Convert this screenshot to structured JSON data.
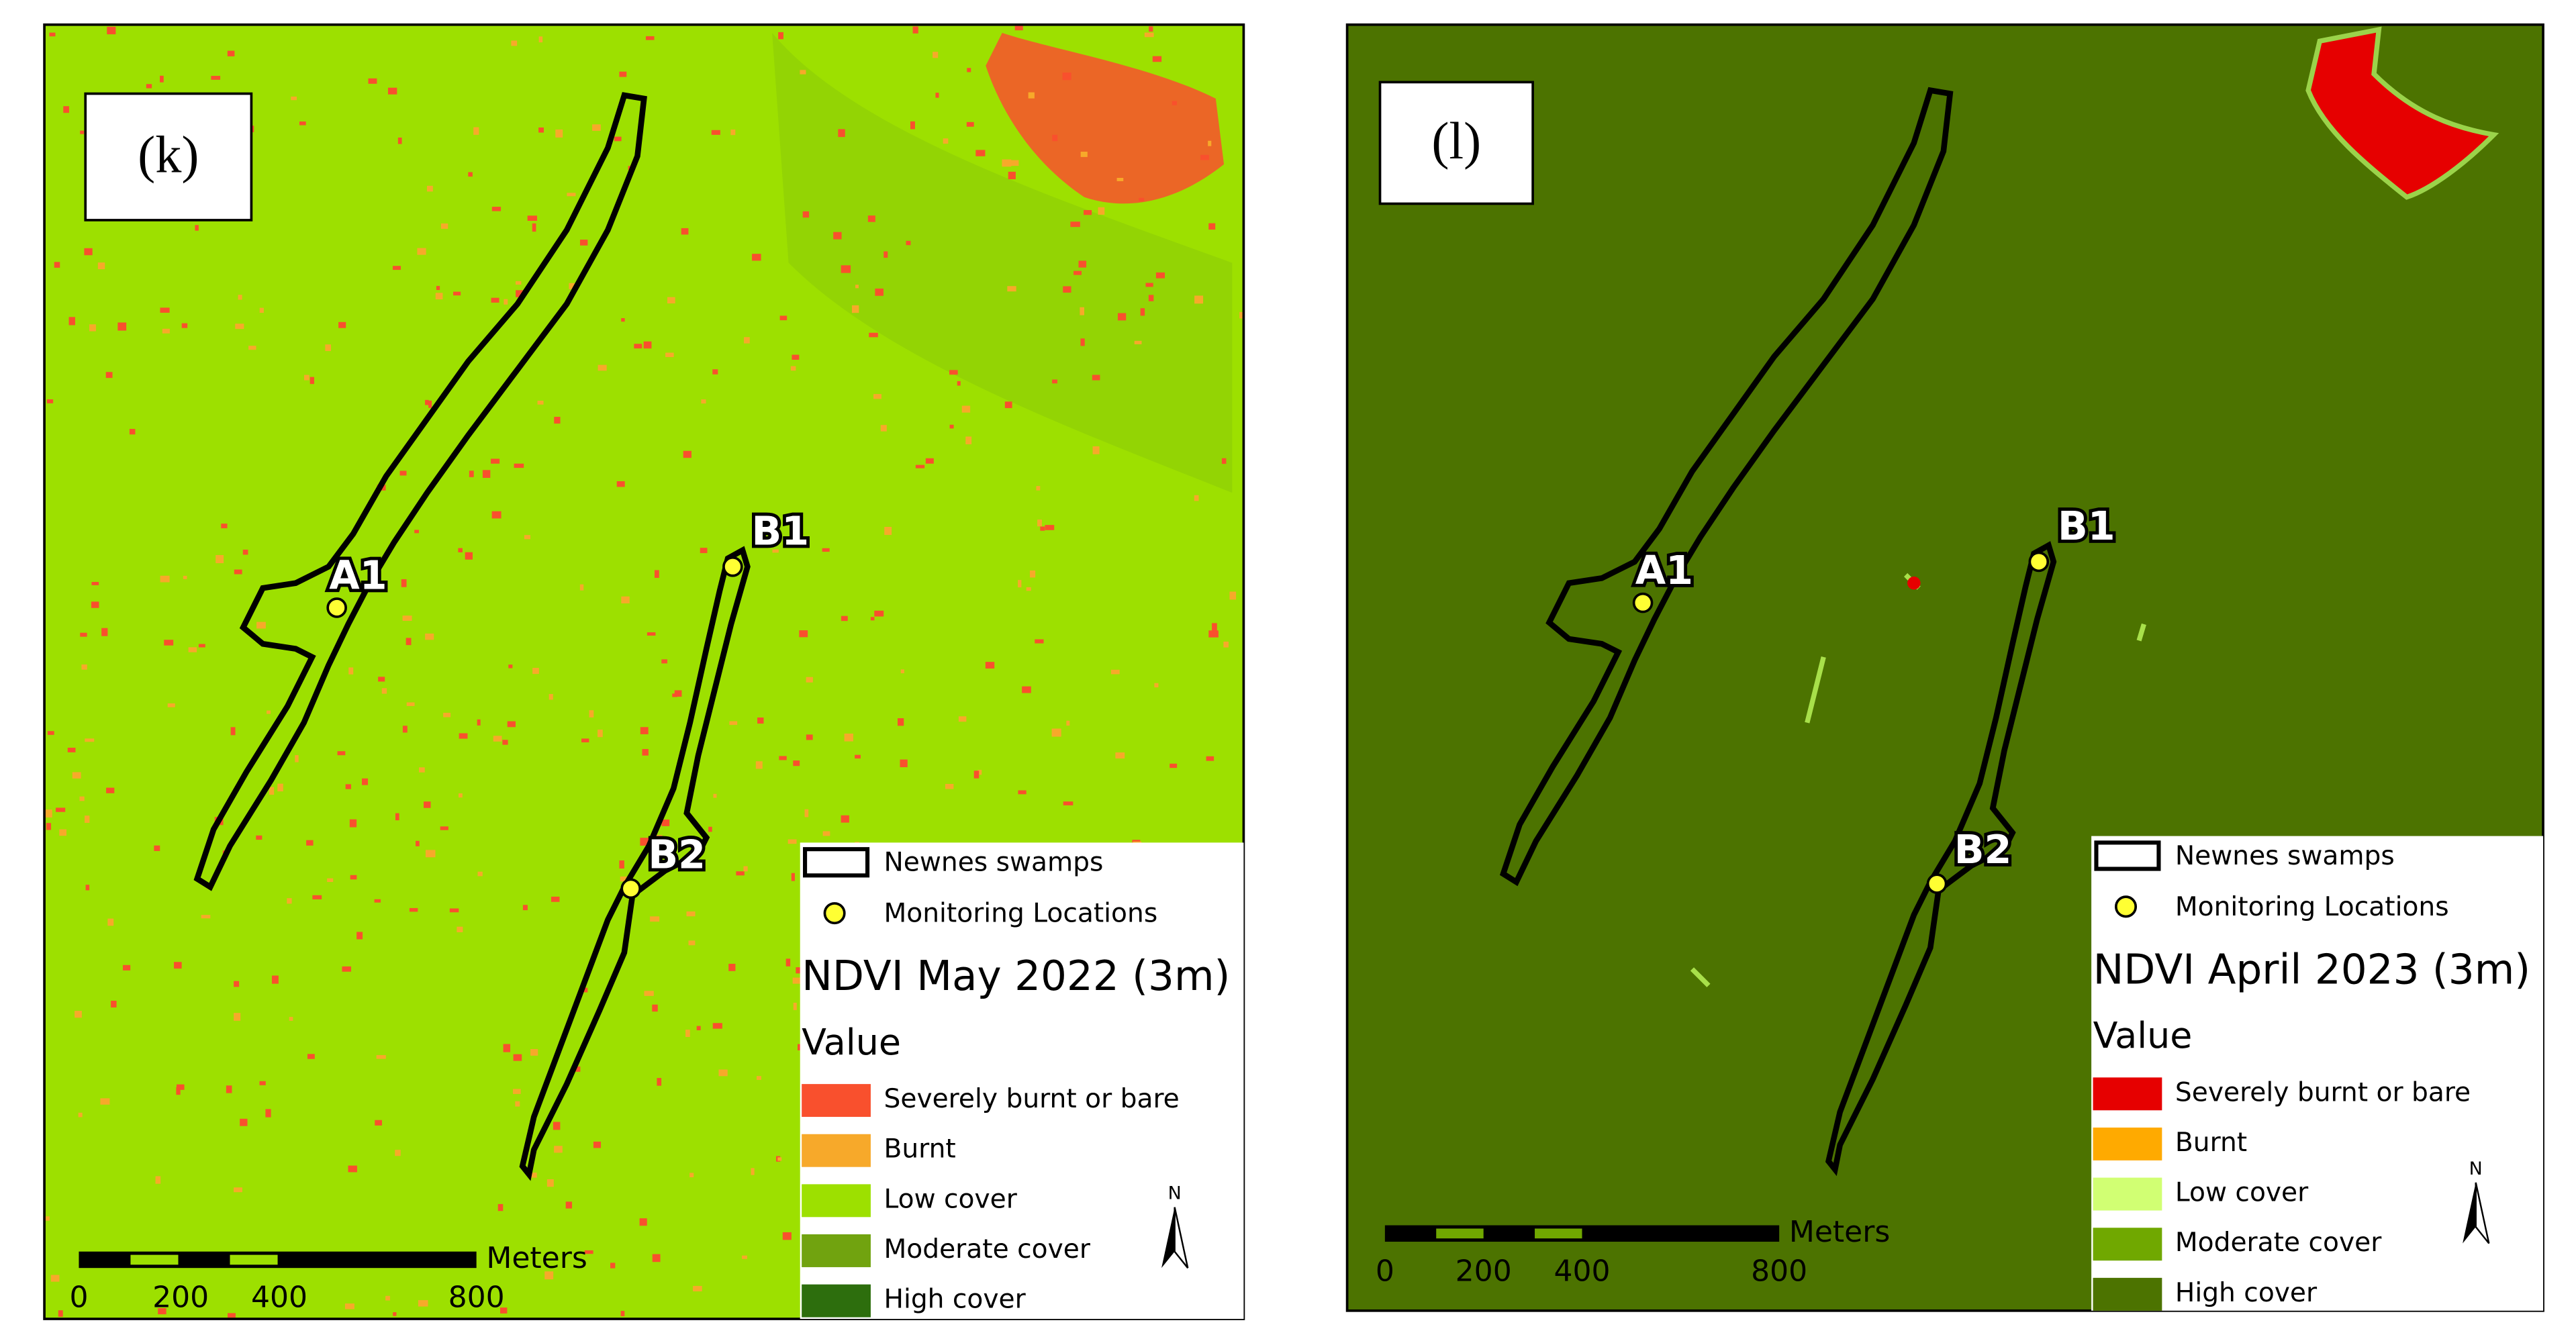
{
  "panels": [
    {
      "label": "(k)",
      "points": [
        "A1",
        "B1",
        "B2"
      ],
      "legend": {
        "items": [
          "Newnes swamps",
          "Monitoring Locations"
        ],
        "title": "NDVI May 2022 (3m)",
        "subtitle": "Value",
        "classes": [
          {
            "name": "Severely burnt or bare",
            "color": "#f9502d"
          },
          {
            "name": "Burnt",
            "color": "#f7a92a"
          },
          {
            "name": "Low cover",
            "color": "#9de000"
          },
          {
            "name": "Moderate cover",
            "color": "#71a30f"
          },
          {
            "name": "High cover",
            "color": "#2d6e0d"
          }
        ]
      },
      "scale": {
        "unit": "Meters",
        "ticks": [
          "0",
          "200",
          "400",
          "800"
        ]
      },
      "north": "N"
    },
    {
      "label": "(l)",
      "points": [
        "A1",
        "B1",
        "B2"
      ],
      "legend": {
        "items": [
          "Newnes swamps",
          "Monitoring Locations"
        ],
        "title": "NDVI April 2023 (3m)",
        "subtitle": "Value",
        "classes": [
          {
            "name": "Severely burnt or bare",
            "color": "#e60000"
          },
          {
            "name": "Burnt",
            "color": "#ffaa00"
          },
          {
            "name": "Low cover",
            "color": "#d1ff73"
          },
          {
            "name": "Moderate cover",
            "color": "#70a800"
          },
          {
            "name": "High cover",
            "color": "#4c7300"
          }
        ]
      },
      "scale": {
        "unit": "Meters",
        "ticks": [
          "0",
          "200",
          "400",
          "800"
        ]
      },
      "north": "N"
    }
  ]
}
